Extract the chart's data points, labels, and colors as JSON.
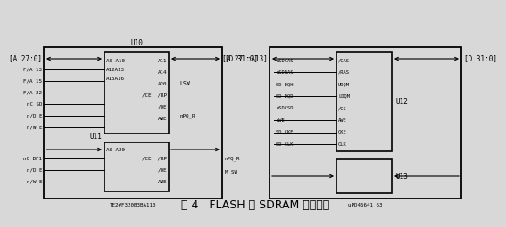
{
  "title": "图 4   FLASH 和 SDRAM 扩展电路",
  "title_fontsize": 9,
  "bg_color": "#d8d8d8",
  "line_color": "#000000",
  "text_color": "#000000",
  "font_size": 5.5,
  "small_font": 4.2,
  "u10_left_pins": [
    "A0 A10",
    "A12A13",
    "A15A16"
  ],
  "u10_right_pins": [
    "A11",
    "A14",
    "A20",
    "/CE  /RP",
    "/OE",
    "AWE"
  ],
  "u10_lsw": "LSW",
  "u10_npqr": "nPQ_R",
  "u11_top_pin": "A0 A20",
  "u11_right_pins": [
    "/CE  /RP",
    "/OE",
    "AWE"
  ],
  "u11_right_sigs": [
    "nPQ_R",
    "M SW"
  ],
  "u12_left_sigs": [
    "nSDCAS",
    "nSDRAS",
    "SD DQH",
    "SD DQD",
    "nSDCSD",
    "nWE",
    "SD CKE",
    "SD CLK"
  ],
  "u12_right_pins": [
    "/CAS",
    "/RAS",
    "UDQM",
    "LDQM",
    "/CS",
    "AWE",
    "CKE",
    "CLK"
  ],
  "left_signals_u10": [
    "F/A 13",
    "F/A 15",
    "F/A 22",
    "nC SD",
    "n/D E",
    "n/W E"
  ],
  "left_signals_u11": [
    "nC BF1",
    "n/D E",
    "n/W E"
  ],
  "bus_left_label": "[A 27:0]",
  "bus_right_label_left": "[D 31:0]",
  "addr_right_label": "[A 27 :A13]",
  "data_right_label": "[D 31:0]",
  "u10_label": "U10",
  "u11_label": "U11",
  "u12_label": "U12",
  "u13_label": "U13",
  "bottom_left": "TE2#F320B3BA110",
  "bottom_right": "uPD45641 63"
}
